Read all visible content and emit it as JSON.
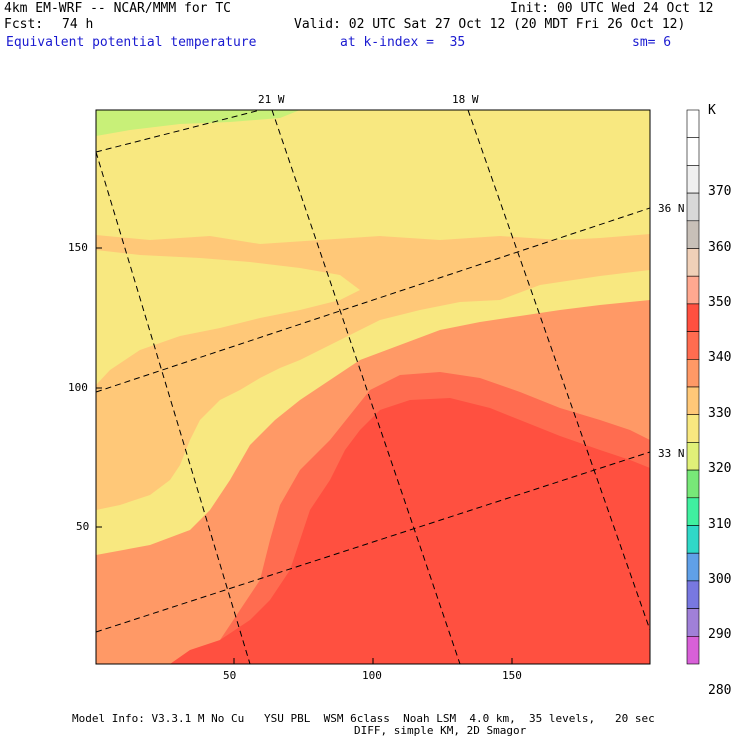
{
  "header": {
    "model_title": "4km EM-WRF -- NCAR/MMM for TC",
    "init": "Init: 00 UTC Wed 24 Oct 12",
    "fcst_label": "Fcst:",
    "fcst_value": "74 h",
    "valid": "Valid: 02 UTC Sat 27 Oct 12 (20 MDT Fri 26 Oct 12)",
    "field": "Equivalent potential temperature",
    "level": "at k-index =  35",
    "smoothing": "sm= 6"
  },
  "axes": {
    "x_ticks": [
      "50",
      "100",
      "150"
    ],
    "y_ticks": [
      "150",
      "100",
      "50"
    ],
    "lon_labels": [
      "21 W",
      "18 W"
    ],
    "lat_labels": [
      "36 N",
      "33 N"
    ]
  },
  "colorbar": {
    "unit": "K",
    "levels": [
      "370",
      "360",
      "350",
      "340",
      "330",
      "320",
      "310",
      "300",
      "290",
      "280"
    ],
    "colors": [
      "#ffffff",
      "#ffffff",
      "#f0f0f0",
      "#d8d8d8",
      "#c8c0b8",
      "#f0d0b8",
      "#ffa890",
      "#ff5040",
      "#ff6c50",
      "#ff9966",
      "#ffc878",
      "#f8e880",
      "#e0f078",
      "#78e878",
      "#40f0a0",
      "#30d8c8",
      "#60a0e8",
      "#7878e0",
      "#a080d8",
      "#d860d8"
    ]
  },
  "colors": {
    "yellow": "#f8e880",
    "light_orange": "#ffc878",
    "orange": "#ff9966",
    "red_orange": "#ff6c50",
    "red": "#ff5040",
    "green": "#c8f078"
  },
  "footer": {
    "line1": "Model Info: V3.3.1 M No Cu   YSU PBL  WSM 6class  Noah LSM  4.0 km,  35 levels,   20 sec",
    "line2": "DIFF, simple KM, 2D Smagor"
  }
}
